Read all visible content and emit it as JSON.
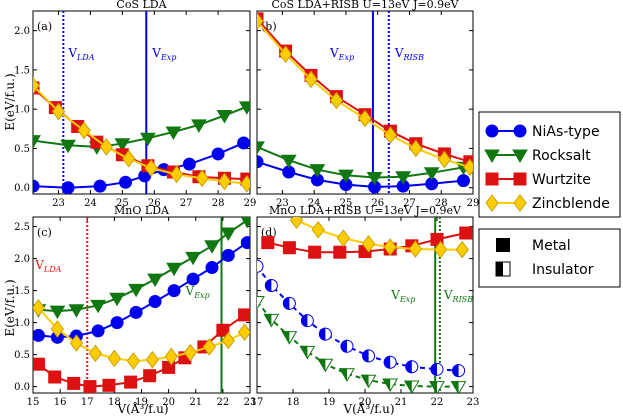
{
  "figure_labels": {
    "y_axis": "E(eV/f.u.)",
    "x_axis": "V(Å³/f.u)"
  },
  "legend": {
    "structures": [
      {
        "name": "NiAs-type",
        "color": "#0000ee",
        "marker": "circle"
      },
      {
        "name": "Rocksalt",
        "color": "#117711",
        "marker": "triangle-down"
      },
      {
        "name": "Wurtzite",
        "color": "#dd1111",
        "marker": "square"
      },
      {
        "name": "Zincblende",
        "color": "#ffcc00",
        "marker": "diamond"
      }
    ],
    "states": [
      {
        "name": "Metal",
        "marker": "filled-square"
      },
      {
        "name": "Insulator",
        "marker": "half-filled-square"
      }
    ]
  },
  "chart_data": [
    {
      "type": "line",
      "panel_label": "(a)",
      "title": "CoS LDA",
      "xlim": [
        22.2,
        29
      ],
      "ylim": [
        -0.08,
        2.25
      ],
      "xticks": [
        23,
        24,
        25,
        26,
        27,
        28,
        29
      ],
      "yticks": [
        0.0,
        0.5,
        1.0,
        1.5,
        2.0
      ],
      "ytick_labels": [
        "0.0",
        "0.5",
        "1.0",
        "1.5",
        "2.0"
      ],
      "y_label_shown": true,
      "x_label_shown": false,
      "vlines": [
        {
          "label": "V",
          "sub": "LDA",
          "x": 23.15,
          "color": "#0000ee",
          "style": "dotted"
        },
        {
          "label": "V",
          "sub": "Exp",
          "x": 25.75,
          "color": "#0000ee",
          "style": "solid"
        }
      ],
      "series": [
        {
          "name": "NiAs-type",
          "color": "#0000ee",
          "marker": "circle",
          "fill": "full",
          "x": [
            22.2,
            23.3,
            24.3,
            25.1,
            25.7,
            26.3,
            27.1,
            28.0,
            28.8
          ],
          "y": [
            0.02,
            0.0,
            0.02,
            0.07,
            0.15,
            0.23,
            0.3,
            0.43,
            0.57
          ]
        },
        {
          "name": "Rocksalt",
          "color": "#117711",
          "marker": "triangle-down",
          "fill": "full",
          "x": [
            22.2,
            23.3,
            24.2,
            25.0,
            25.8,
            26.6,
            27.4,
            28.2,
            28.9
          ],
          "y": [
            0.6,
            0.54,
            0.52,
            0.56,
            0.63,
            0.71,
            0.8,
            0.92,
            1.03
          ]
        },
        {
          "name": "Wurtzite",
          "color": "#dd1111",
          "marker": "square",
          "fill": "full",
          "x": [
            22.2,
            22.9,
            23.6,
            24.2,
            25.0,
            25.8,
            26.6,
            27.4,
            28.2,
            28.9
          ],
          "y": [
            1.27,
            1.02,
            0.78,
            0.58,
            0.42,
            0.28,
            0.2,
            0.14,
            0.12,
            0.11
          ]
        },
        {
          "name": "Zincblende",
          "color": "#ffcc00",
          "marker": "diamond",
          "fill": "full",
          "x": [
            22.2,
            23.0,
            23.8,
            24.5,
            25.2,
            25.9,
            26.7,
            27.5,
            28.2,
            28.9
          ],
          "y": [
            1.3,
            0.97,
            0.73,
            0.52,
            0.37,
            0.25,
            0.17,
            0.12,
            0.08,
            0.05
          ]
        }
      ]
    },
    {
      "type": "line",
      "panel_label": "(b)",
      "title": "CoS LDA+RISB U=13eV J=0.9eV",
      "xlim": [
        22.2,
        29
      ],
      "ylim": [
        -0.08,
        2.25
      ],
      "xticks": [
        23,
        24,
        25,
        26,
        27,
        28,
        29
      ],
      "yticks": [
        0.0,
        0.5,
        1.0,
        1.5,
        2.0
      ],
      "ytick_labels": [],
      "y_label_shown": false,
      "x_label_shown": false,
      "vlines": [
        {
          "label": "V",
          "sub": "Exp",
          "x": 25.85,
          "color": "#0000ee",
          "style": "solid"
        },
        {
          "label": "V",
          "sub": "RISB",
          "x": 26.35,
          "color": "#0000ee",
          "style": "dotted"
        }
      ],
      "series": [
        {
          "name": "NiAs-type",
          "color": "#0000ee",
          "marker": "circle",
          "fill": "full",
          "x": [
            22.2,
            23.2,
            24.1,
            25.0,
            25.9,
            26.8,
            27.7,
            28.7
          ],
          "y": [
            0.33,
            0.2,
            0.1,
            0.04,
            0.01,
            0.02,
            0.05,
            0.09
          ]
        },
        {
          "name": "Rocksalt",
          "color": "#117711",
          "marker": "triangle-down",
          "fill": "full",
          "x": [
            22.2,
            23.2,
            24.1,
            25.0,
            25.9,
            26.8,
            27.7,
            28.7
          ],
          "y": [
            0.52,
            0.35,
            0.23,
            0.16,
            0.13,
            0.14,
            0.19,
            0.26
          ]
        },
        {
          "name": "Wurtzite",
          "color": "#dd1111",
          "marker": "square",
          "fill": "full",
          "x": [
            22.2,
            23.1,
            23.9,
            24.7,
            25.6,
            26.4,
            27.2,
            28.1,
            28.9
          ],
          "y": [
            2.15,
            1.74,
            1.43,
            1.16,
            0.93,
            0.72,
            0.56,
            0.43,
            0.33
          ]
        },
        {
          "name": "Zincblende",
          "color": "#ffcc00",
          "marker": "diamond",
          "fill": "full",
          "x": [
            22.2,
            23.1,
            23.9,
            24.7,
            25.6,
            26.4,
            27.2,
            28.1,
            28.9
          ],
          "y": [
            2.12,
            1.7,
            1.38,
            1.11,
            0.88,
            0.67,
            0.5,
            0.36,
            0.26
          ]
        }
      ]
    },
    {
      "type": "line",
      "panel_label": "(c)",
      "title": "MnO LDA",
      "xlim": [
        15,
        23
      ],
      "ylim": [
        -0.1,
        2.65
      ],
      "xticks": [
        15,
        16,
        17,
        18,
        19,
        20,
        21,
        22,
        23
      ],
      "yticks": [
        0.0,
        0.5,
        1.0,
        1.5,
        2.0,
        2.5
      ],
      "ytick_labels": [
        "0.0",
        "0.5",
        "1.0",
        "1.5",
        "2.0",
        "2.5"
      ],
      "y_label_shown": true,
      "x_label_shown": true,
      "vlines": [
        {
          "label": "V",
          "sub": "LDA",
          "x": 17.0,
          "color": "#ee1111",
          "style": "dotted"
        },
        {
          "label": "V",
          "sub": "Exp",
          "x": 21.95,
          "color": "#117711",
          "style": "solid"
        }
      ],
      "series": [
        {
          "name": "NiAs-type",
          "color": "#0000ee",
          "marker": "circle",
          "fill": "full",
          "x": [
            15.2,
            15.9,
            16.6,
            17.4,
            18.1,
            18.8,
            19.5,
            20.2,
            20.9,
            21.6,
            22.2,
            22.9
          ],
          "y": [
            0.8,
            0.77,
            0.79,
            0.87,
            1.0,
            1.16,
            1.33,
            1.5,
            1.68,
            1.86,
            2.05,
            2.25
          ]
        },
        {
          "name": "Rocksalt",
          "color": "#117711",
          "marker": "triangle-down",
          "fill": "full",
          "x": [
            15.2,
            15.9,
            16.6,
            17.4,
            18.1,
            18.8,
            19.5,
            20.2,
            20.9,
            21.6,
            22.2,
            22.9
          ],
          "y": [
            1.2,
            1.18,
            1.2,
            1.27,
            1.38,
            1.52,
            1.68,
            1.85,
            2.02,
            2.2,
            2.4,
            2.6
          ]
        },
        {
          "name": "Wurtzite",
          "color": "#dd1111",
          "marker": "square",
          "fill": "full",
          "x": [
            15.2,
            15.8,
            16.5,
            17.1,
            17.8,
            18.6,
            19.3,
            20.0,
            20.6,
            21.3,
            22.0,
            22.8
          ],
          "y": [
            0.35,
            0.15,
            0.05,
            0.0,
            0.02,
            0.07,
            0.17,
            0.3,
            0.45,
            0.62,
            0.88,
            1.12
          ]
        },
        {
          "name": "Zincblende",
          "color": "#ffcc00",
          "marker": "diamond",
          "fill": "full",
          "x": [
            15.2,
            15.9,
            16.6,
            17.3,
            18.0,
            18.7,
            19.4,
            20.1,
            20.8,
            21.5,
            22.2,
            22.8
          ],
          "y": [
            1.23,
            0.9,
            0.68,
            0.52,
            0.44,
            0.4,
            0.42,
            0.47,
            0.53,
            0.62,
            0.72,
            0.85
          ]
        }
      ]
    },
    {
      "type": "line",
      "panel_label": "(d)",
      "title": "MnO LDA+RISB U=13eV J=0.9eV",
      "xlim": [
        17,
        23
      ],
      "ylim": [
        -0.1,
        2.65
      ],
      "xticks": [
        17,
        18,
        19,
        20,
        21,
        22,
        23
      ],
      "yticks": [
        0.0,
        0.5,
        1.0,
        1.5,
        2.0,
        2.5
      ],
      "ytick_labels": [],
      "y_label_shown": false,
      "x_label_shown": true,
      "vlines": [
        {
          "label": "V",
          "sub": "Exp",
          "x": 21.95,
          "color": "#117711",
          "style": "solid"
        },
        {
          "label": "V",
          "sub": "RISB",
          "x": 22.08,
          "color": "#117711",
          "style": "dotted"
        }
      ],
      "series": [
        {
          "name": "NiAs-type",
          "color": "#0000ee",
          "marker": "circle",
          "fill": "half",
          "line": "dashed",
          "x": [
            17.0,
            17.4,
            17.9,
            18.4,
            18.9,
            19.5,
            20.1,
            20.7,
            21.3,
            22.0,
            22.6
          ],
          "y": [
            1.88,
            1.58,
            1.3,
            1.03,
            0.82,
            0.63,
            0.48,
            0.38,
            0.31,
            0.27,
            0.25
          ]
        },
        {
          "name": "Rocksalt",
          "color": "#117711",
          "marker": "triangle-down",
          "fill": "half",
          "line": "dashed",
          "x": [
            17.0,
            17.4,
            17.9,
            18.4,
            18.9,
            19.5,
            20.1,
            20.7,
            21.3,
            22.0,
            22.6
          ],
          "y": [
            1.33,
            1.05,
            0.78,
            0.55,
            0.35,
            0.2,
            0.1,
            0.04,
            0.01,
            0.0,
            0.0
          ]
        },
        {
          "name": "Wurtzite",
          "color": "#dd1111",
          "marker": "square",
          "fill": "full",
          "line": "solid",
          "x": [
            17.3,
            17.9,
            18.6,
            19.3,
            20.0,
            20.7,
            21.3,
            22.0,
            22.8
          ],
          "y": [
            2.25,
            2.17,
            2.1,
            2.1,
            2.11,
            2.15,
            2.2,
            2.3,
            2.4
          ]
        },
        {
          "name": "Zincblende",
          "color": "#ffcc00",
          "marker": "diamond",
          "fill": "full",
          "line": "solid",
          "x": [
            18.1,
            18.7,
            19.4,
            20.1,
            20.7,
            21.4,
            22.1,
            22.7
          ],
          "y": [
            2.6,
            2.45,
            2.32,
            2.23,
            2.18,
            2.15,
            2.14,
            2.14
          ]
        }
      ]
    }
  ]
}
